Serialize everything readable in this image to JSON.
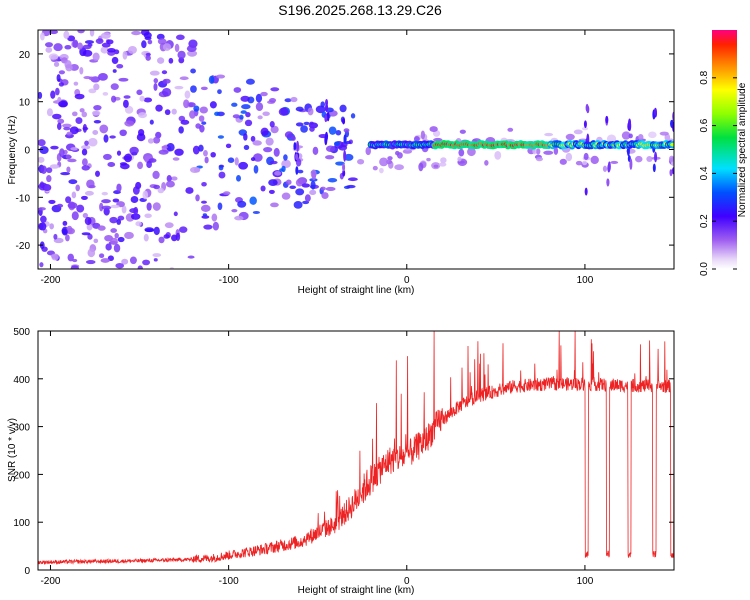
{
  "title": "S196.2025.268.13.29.C26",
  "chart_data": [
    {
      "type": "heatmap",
      "xlabel": "Height of straight line (km)",
      "ylabel": "Frequency (Hz)",
      "xlim": [
        -207,
        150
      ],
      "ylim": [
        -25,
        25
      ],
      "xticks": [
        -200,
        -100,
        0,
        100
      ],
      "yticks": [
        -20,
        -10,
        0,
        10,
        20
      ],
      "xtick_labels": [
        "-200",
        "-100",
        "0",
        "100"
      ],
      "ytick_labels": [
        "-20",
        "-10",
        "0",
        "10",
        "20"
      ],
      "colorbar": {
        "label": "Normalized spectral amplitude",
        "range": [
          0,
          1
        ],
        "ticks": [
          "0.0",
          "0.2",
          "0.4",
          "0.6",
          "0.8"
        ],
        "tick_values": [
          0,
          0.2,
          0.4,
          0.6,
          0.8
        ]
      },
      "description_values": {
        "main_line_freq_hz": 1,
        "main_line_start_km": -20,
        "main_line_end_km": 150,
        "peak_amplitude_range_km": [
          15,
          80
        ],
        "noise_region_km": [
          -207,
          -30
        ]
      }
    },
    {
      "type": "line",
      "xlabel": "Height of straight line (km)",
      "ylabel": "SNR (10 * v/v)",
      "xlim": [
        -207,
        150
      ],
      "ylim": [
        0,
        500
      ],
      "xticks": [
        -200,
        -100,
        0,
        100
      ],
      "yticks": [
        0,
        100,
        200,
        300,
        400,
        500
      ],
      "xtick_labels": [
        "-200",
        "-100",
        "0",
        "100"
      ],
      "ytick_labels": [
        "0",
        "100",
        "200",
        "300",
        "400",
        "500"
      ],
      "series": [
        {
          "name": "SNR",
          "color": "#ee2222",
          "profile_x": [
            -207,
            -150,
            -110,
            -80,
            -60,
            -40,
            -30,
            -20,
            -10,
            0,
            10,
            20,
            30,
            40,
            50,
            60,
            80,
            100,
            120,
            150
          ],
          "profile_y": [
            15,
            18,
            22,
            40,
            55,
            90,
            130,
            180,
            220,
            230,
            260,
            310,
            340,
            360,
            370,
            380,
            385,
            385,
            382,
            380
          ],
          "dropouts_km": [
            101,
            113,
            125,
            139,
            149
          ],
          "dropout_level": 25
        }
      ]
    }
  ]
}
